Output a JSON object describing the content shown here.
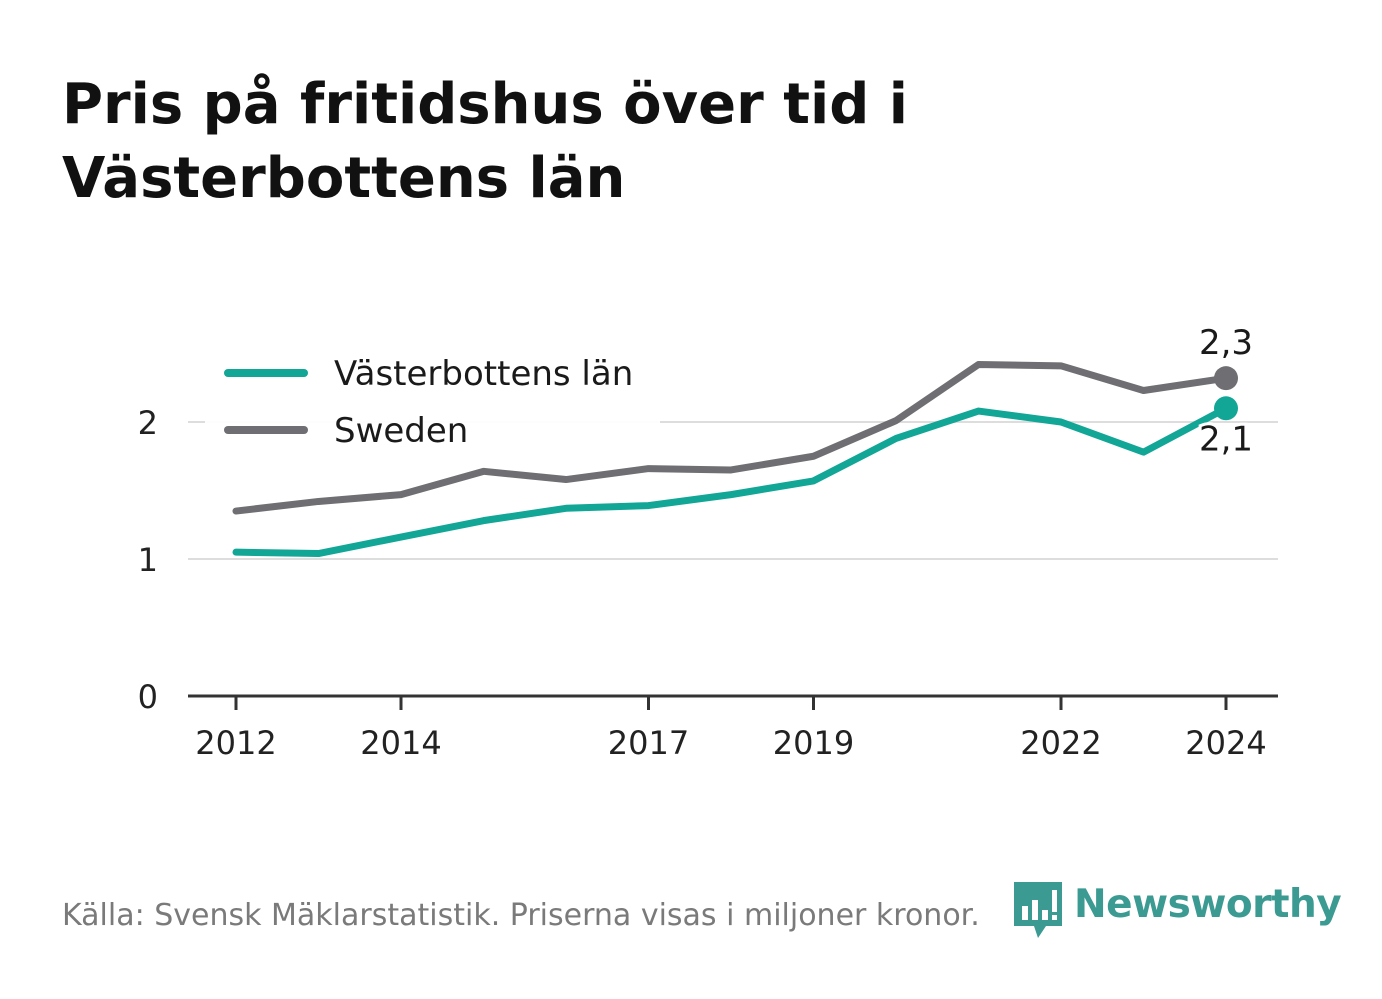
{
  "title": "Pris på fritidshus över tid i Västerbottens län",
  "footer": "Källa: Svensk Mäklarstatistik. Priserna visas i miljoner kronor.",
  "logo_text": "Newsworthy",
  "colors": {
    "vasterbotten": "#12a696",
    "sweden": "#6e6e73",
    "grid": "#dddddd",
    "axis": "#333333"
  },
  "chart_data": {
    "type": "line",
    "x": [
      2012,
      2013,
      2014,
      2015,
      2016,
      2017,
      2018,
      2019,
      2020,
      2021,
      2022,
      2023,
      2024
    ],
    "x_ticks": [
      2012,
      2014,
      2017,
      2019,
      2022,
      2024
    ],
    "y_ticks": [
      0,
      1,
      2
    ],
    "ylim": [
      0,
      2.5
    ],
    "xlim": [
      2011.4,
      2024.6
    ],
    "legend_position": "top-left",
    "grid": true,
    "series": [
      {
        "name": "Västerbottens län",
        "values": [
          1.05,
          1.04,
          1.16,
          1.28,
          1.37,
          1.39,
          1.47,
          1.57,
          1.88,
          2.08,
          2.0,
          1.78,
          2.1
        ],
        "end_label": "2,1"
      },
      {
        "name": "Sweden",
        "values": [
          1.35,
          1.42,
          1.47,
          1.64,
          1.58,
          1.66,
          1.65,
          1.75,
          2.01,
          2.42,
          2.41,
          2.23,
          2.32
        ],
        "end_label": "2,3"
      }
    ]
  }
}
